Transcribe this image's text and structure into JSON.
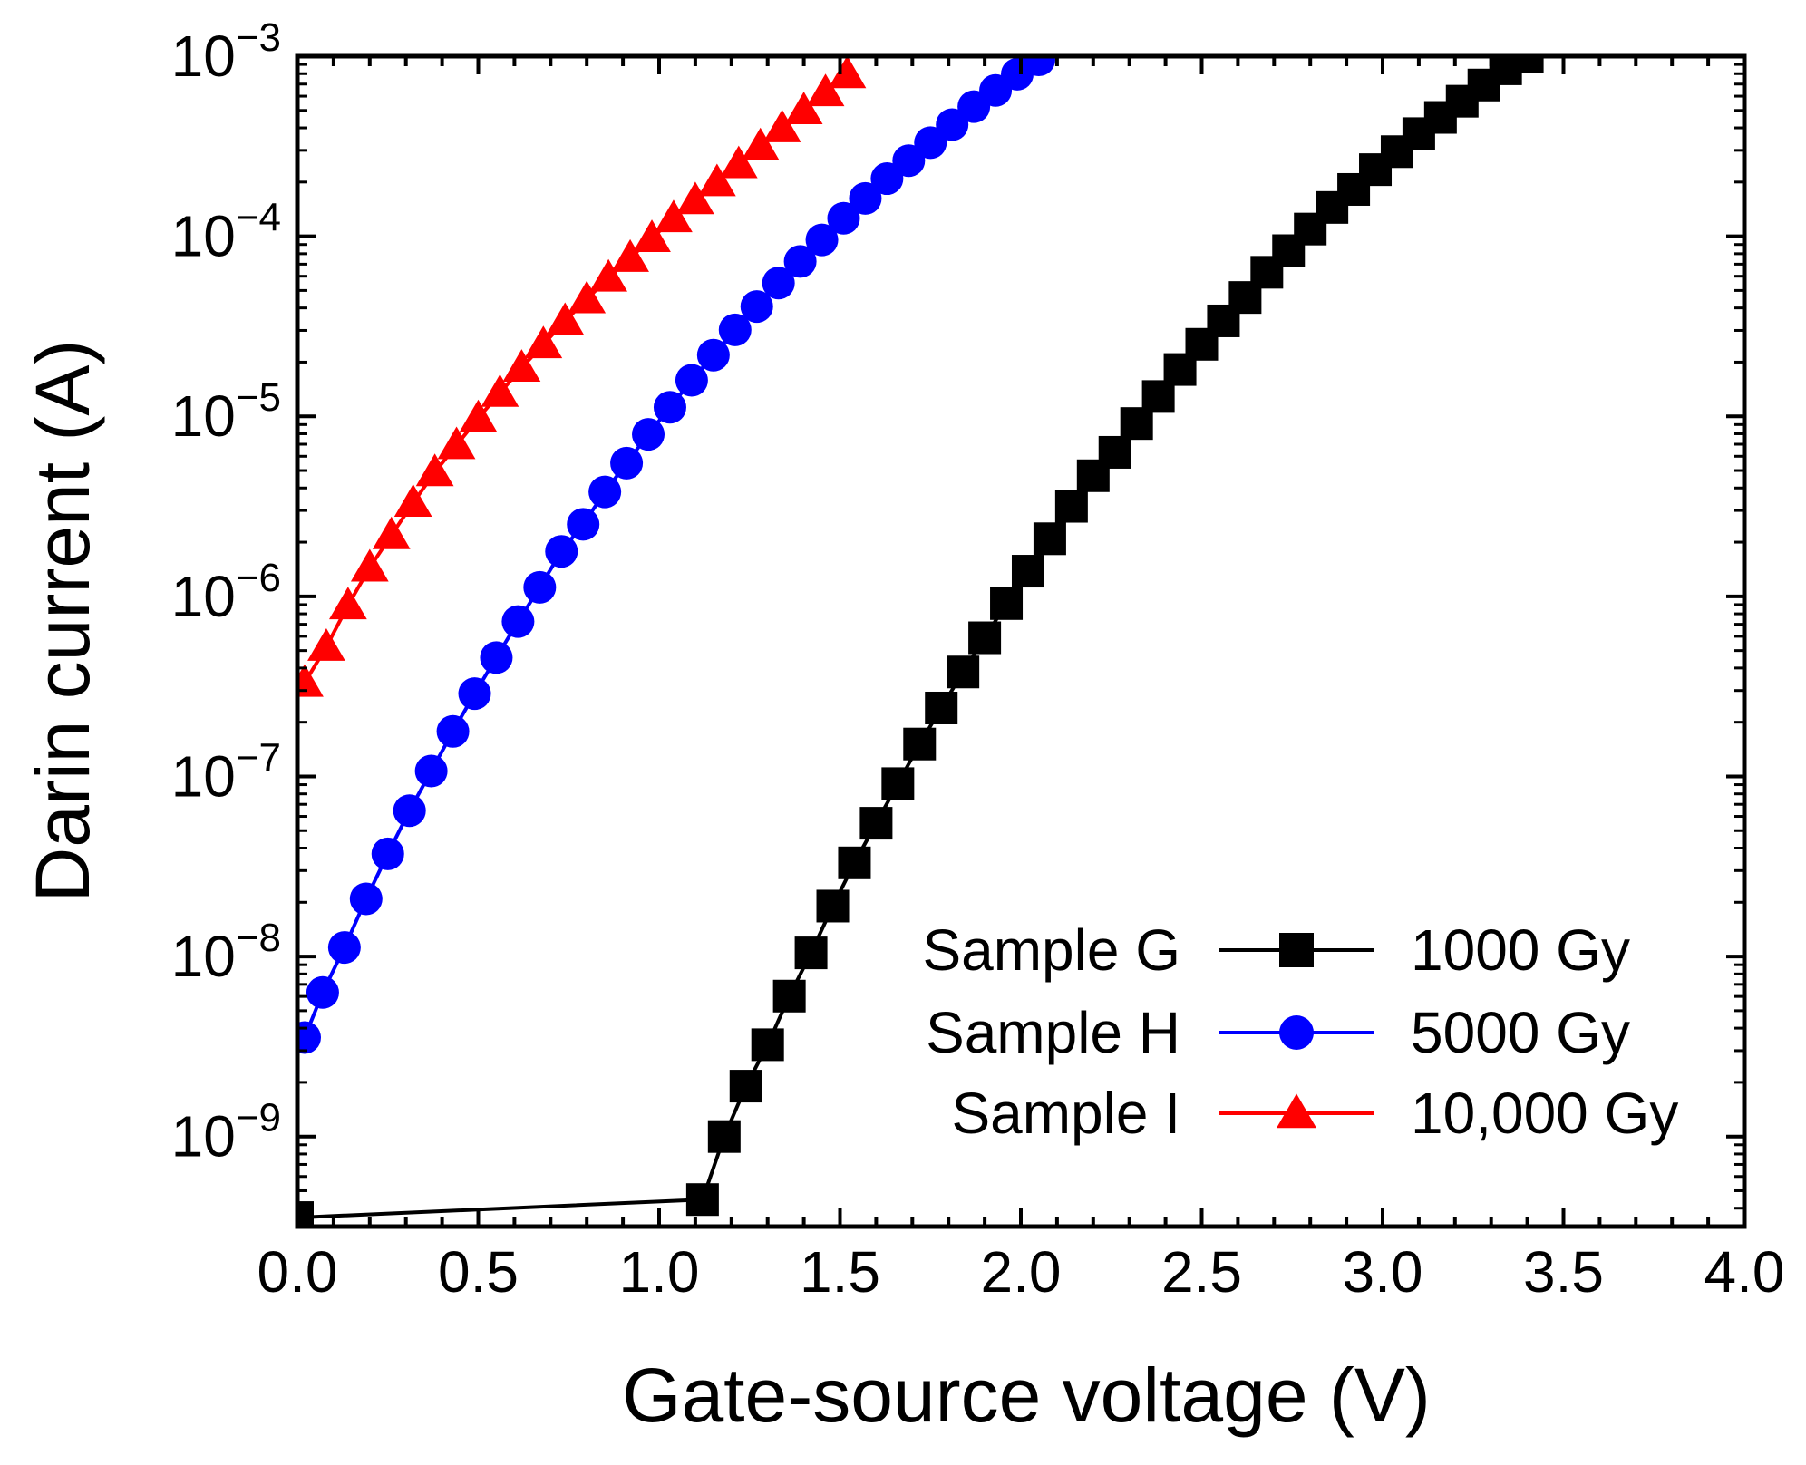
{
  "chart_data": {
    "type": "scatter",
    "x_label": "Gate-source voltage (V)",
    "y_label": "Darin current (A)",
    "y_scale": "log",
    "x_range": [
      0.0,
      4.0
    ],
    "y_range_exponent": [
      -9.5,
      -3
    ],
    "x_ticks": [
      "0.0",
      "0.5",
      "1.0",
      "1.5",
      "2.0",
      "2.5",
      "3.0",
      "3.5",
      "4.0"
    ],
    "y_ticks": [
      {
        "base": "10",
        "exp": "−3",
        "value": -3
      },
      {
        "base": "10",
        "exp": "−4",
        "value": -4
      },
      {
        "base": "10",
        "exp": "−5",
        "value": -5
      },
      {
        "base": "10",
        "exp": "−6",
        "value": -6
      },
      {
        "base": "10",
        "exp": "−7",
        "value": -7
      },
      {
        "base": "10",
        "exp": "−8",
        "value": -8
      },
      {
        "base": "10",
        "exp": "−9",
        "value": -9
      }
    ],
    "legend_position": "bottom-right",
    "series": [
      {
        "name": "Sample G",
        "dose": "1000 Gy",
        "color": "#000000",
        "marker": "square",
        "x": [
          0.0,
          1.12,
          1.18,
          1.24,
          1.3,
          1.36,
          1.42,
          1.48,
          1.54,
          1.6,
          1.66,
          1.72,
          1.78,
          1.84,
          1.9,
          1.96,
          2.02,
          2.08,
          2.14,
          2.2,
          2.26,
          2.32,
          2.38,
          2.44,
          2.5,
          2.56,
          2.62,
          2.68,
          2.74,
          2.8,
          2.86,
          2.92,
          2.98,
          3.04,
          3.1,
          3.16,
          3.22,
          3.28,
          3.34,
          3.4
        ],
        "y_log": [
          -9.45,
          -9.35,
          -9.0,
          -8.72,
          -8.49,
          -8.22,
          -7.98,
          -7.72,
          -7.48,
          -7.26,
          -7.04,
          -6.82,
          -6.62,
          -6.42,
          -6.23,
          -6.04,
          -5.86,
          -5.68,
          -5.5,
          -5.33,
          -5.2,
          -5.04,
          -4.89,
          -4.74,
          -4.6,
          -4.47,
          -4.34,
          -4.2,
          -4.08,
          -3.96,
          -3.84,
          -3.74,
          -3.63,
          -3.53,
          -3.43,
          -3.34,
          -3.25,
          -3.16,
          -3.07,
          -3.0
        ]
      },
      {
        "name": "Sample H",
        "dose": "5000 Gy",
        "color": "#0000ff",
        "marker": "circle",
        "x": [
          0.02,
          0.07,
          0.13,
          0.19,
          0.25,
          0.31,
          0.37,
          0.43,
          0.49,
          0.55,
          0.61,
          0.67,
          0.73,
          0.79,
          0.85,
          0.91,
          0.97,
          1.03,
          1.09,
          1.15,
          1.21,
          1.27,
          1.33,
          1.39,
          1.45,
          1.51,
          1.57,
          1.63,
          1.69,
          1.75,
          1.81,
          1.87,
          1.93,
          1.99,
          2.05
        ],
        "y_log": [
          -8.45,
          -8.2,
          -7.95,
          -7.68,
          -7.43,
          -7.19,
          -6.97,
          -6.75,
          -6.54,
          -6.34,
          -6.14,
          -5.95,
          -5.75,
          -5.6,
          -5.42,
          -5.26,
          -5.1,
          -4.95,
          -4.8,
          -4.66,
          -4.52,
          -4.39,
          -4.26,
          -4.14,
          -4.02,
          -3.9,
          -3.79,
          -3.68,
          -3.58,
          -3.48,
          -3.38,
          -3.28,
          -3.19,
          -3.1,
          -3.02
        ]
      },
      {
        "name": "Sample I",
        "dose": "10,000 Gy",
        "color": "#ff0000",
        "marker": "triangle",
        "x": [
          0.02,
          0.08,
          0.14,
          0.2,
          0.26,
          0.32,
          0.38,
          0.44,
          0.5,
          0.56,
          0.62,
          0.68,
          0.74,
          0.8,
          0.86,
          0.92,
          0.98,
          1.04,
          1.1,
          1.16,
          1.22,
          1.28,
          1.34,
          1.4,
          1.46,
          1.52
        ],
        "y_log": [
          -6.48,
          -6.28,
          -6.05,
          -5.84,
          -5.66,
          -5.48,
          -5.31,
          -5.16,
          -5.01,
          -4.87,
          -4.73,
          -4.6,
          -4.47,
          -4.35,
          -4.23,
          -4.12,
          -4.01,
          -3.9,
          -3.8,
          -3.7,
          -3.6,
          -3.5,
          -3.4,
          -3.3,
          -3.2,
          -3.1
        ]
      }
    ]
  }
}
